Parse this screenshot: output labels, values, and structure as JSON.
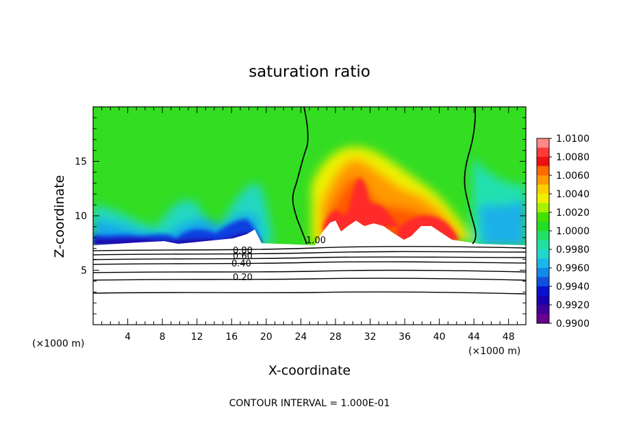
{
  "chart_data": {
    "type": "heatmap",
    "title": "saturation ratio",
    "xlabel": "X-coordinate",
    "ylabel": "Z-coordinate",
    "x_unit_label": "(×1000 m)",
    "x_unit_label_left": "(×1000 m)",
    "footer": "CONTOUR INTERVAL = 1.000E-01",
    "xlim": [
      0,
      50
    ],
    "ylim": [
      0,
      20
    ],
    "xticks": [
      4,
      8,
      12,
      16,
      20,
      24,
      28,
      32,
      36,
      40,
      44,
      48
    ],
    "yticks": [
      5,
      10,
      15
    ],
    "colorbar": {
      "labels": [
        "1.0100",
        "1.0080",
        "1.0060",
        "1.0040",
        "1.0020",
        "1.0000",
        "0.9980",
        "0.9960",
        "0.9940",
        "0.9920",
        "0.9900"
      ],
      "range": [
        0.99,
        1.01
      ],
      "colors": [
        "#ff8a8a",
        "#ff3a3a",
        "#ee1111",
        "#ff6a00",
        "#ff9a00",
        "#ffd000",
        "#eef000",
        "#a8f000",
        "#44e000",
        "#22dd22",
        "#22e066",
        "#22e0a0",
        "#22d8cc",
        "#1ab8e8",
        "#1488e8",
        "#1050e0",
        "#0a10d0",
        "#1800b0",
        "#40009a",
        "#6a0090"
      ]
    },
    "contour_labels": [
      "1.00",
      "0.80",
      "0.60",
      "0.40",
      "0.20"
    ],
    "contours_below_cloud_base": [
      0.2,
      0.4,
      0.6,
      0.8,
      1.0
    ]
  }
}
